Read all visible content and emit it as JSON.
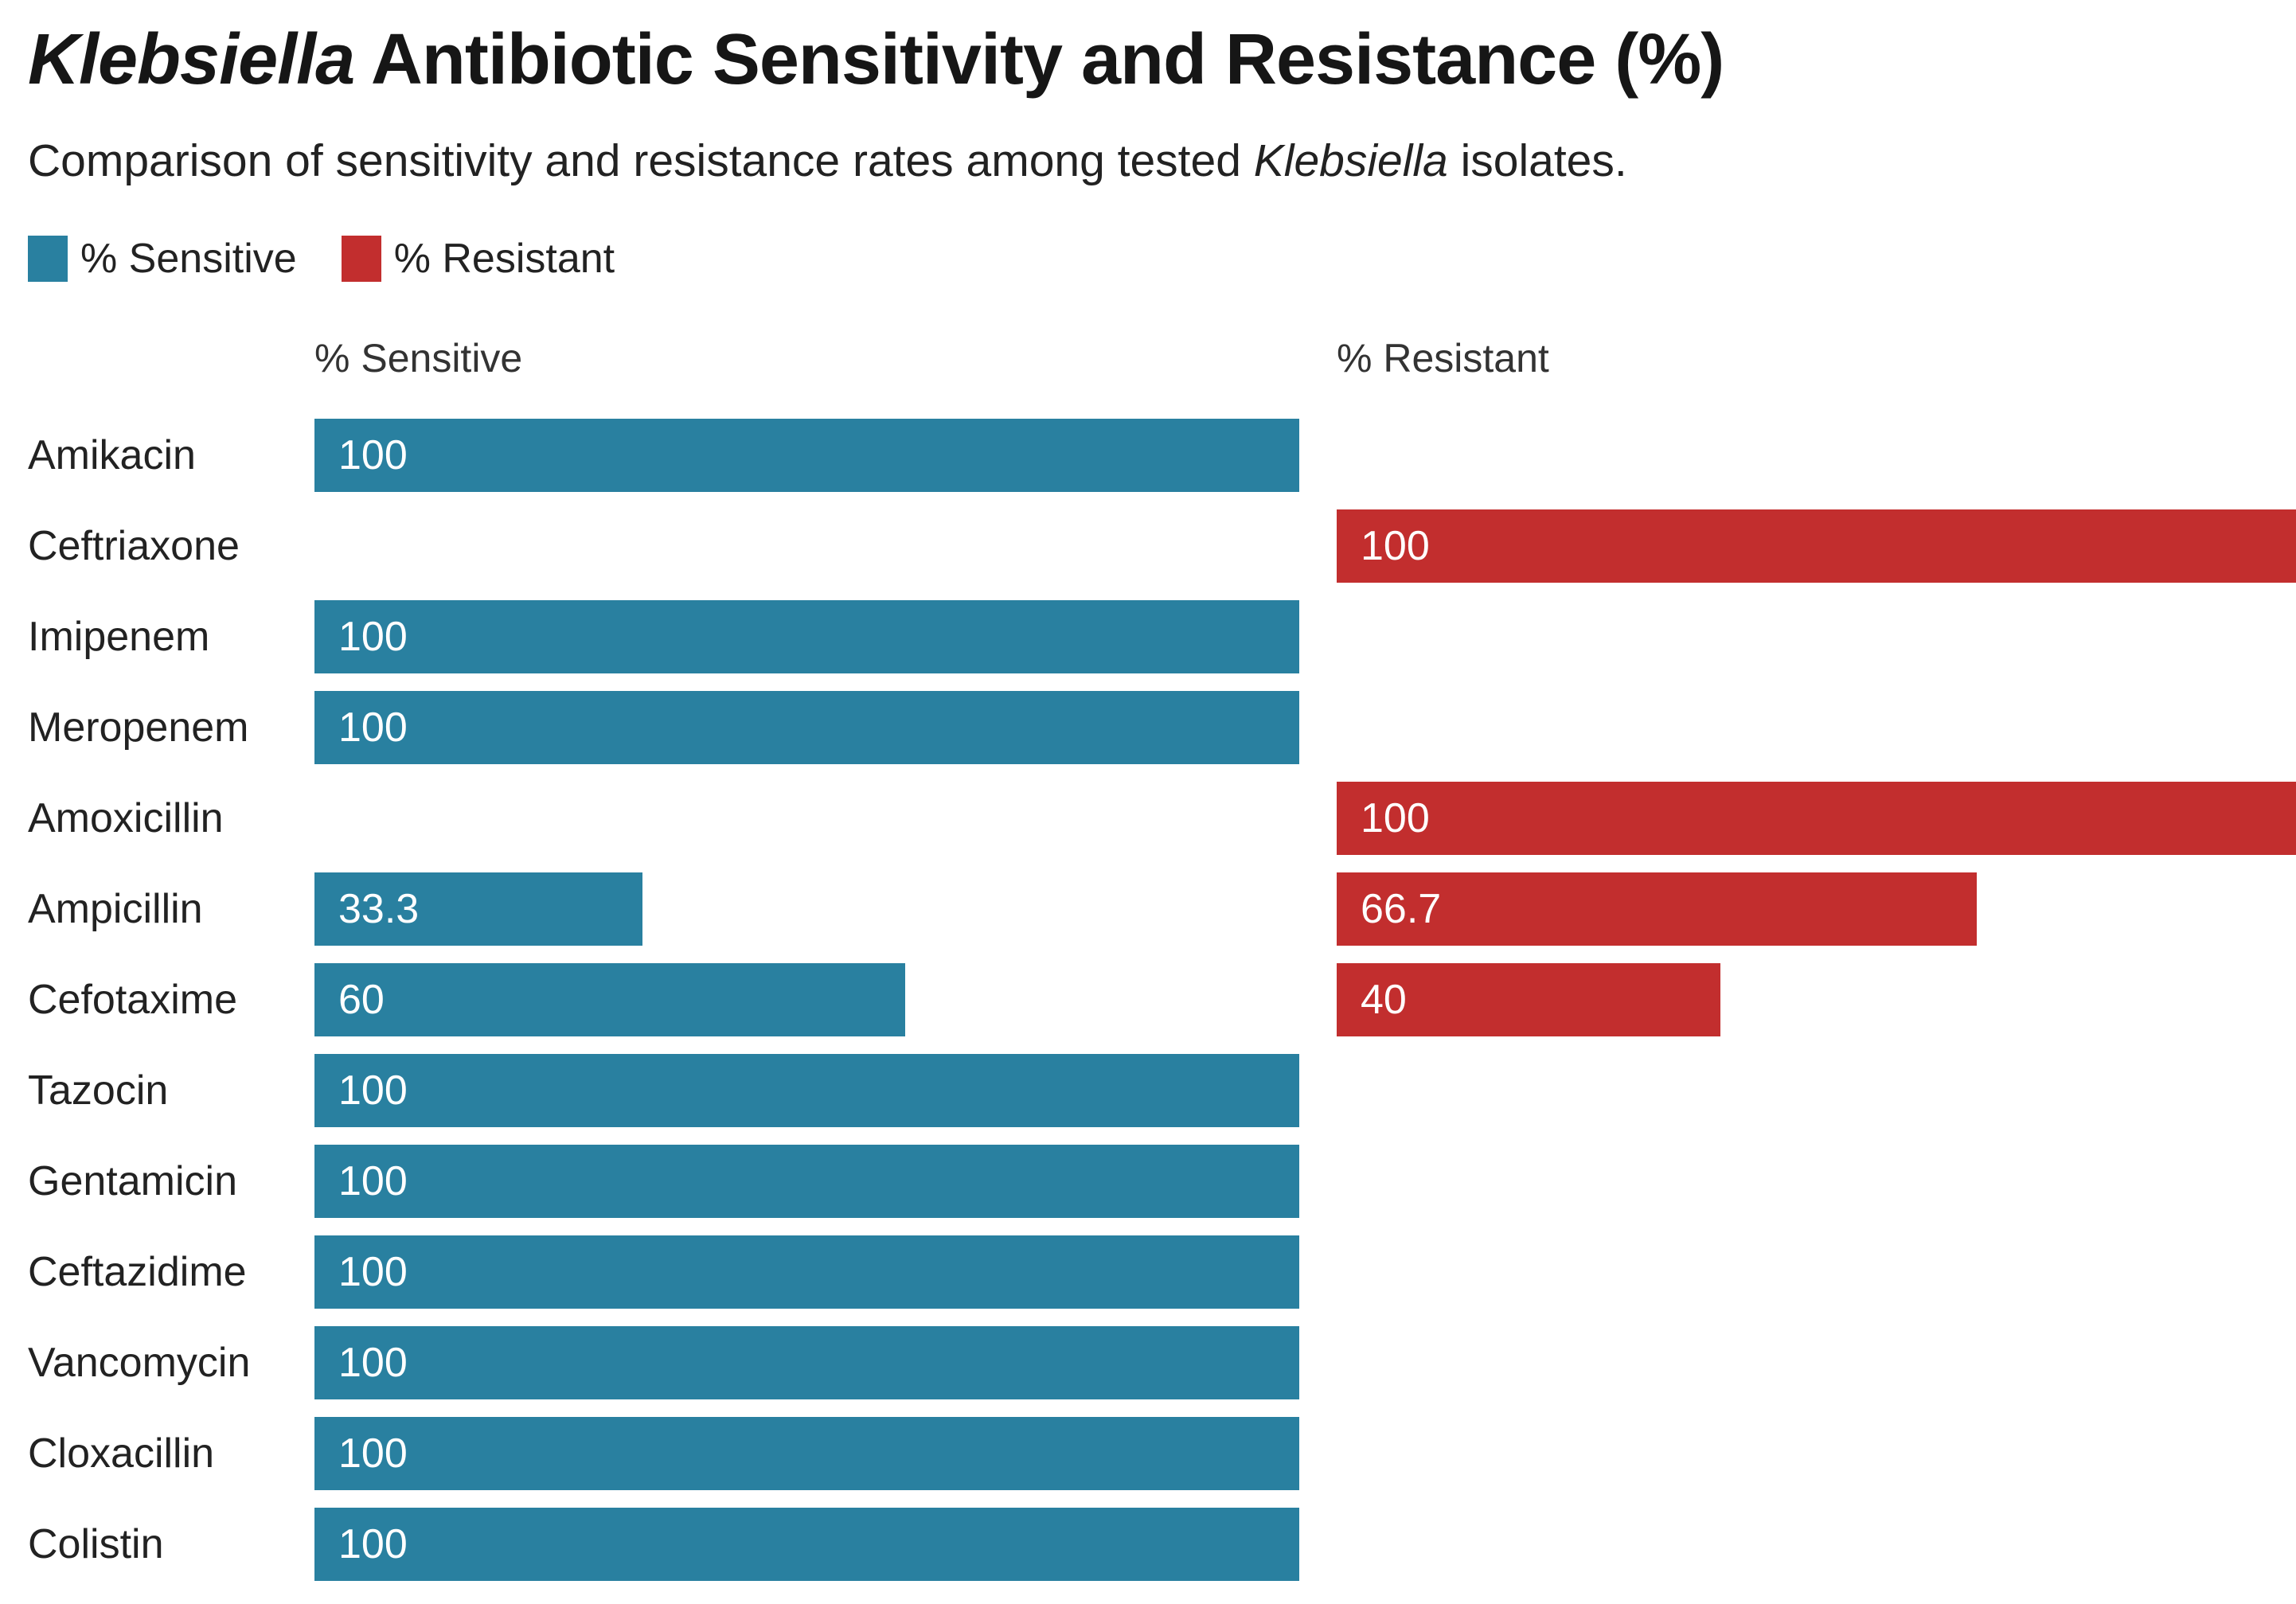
{
  "header": {
    "title_italic": "Klebsiella",
    "title_rest": " Antibiotic Sensitivity and Resistance (%)",
    "subtitle_before": "Comparison of sensitivity and resistance rates among tested ",
    "subtitle_italic": "Klebsiella",
    "subtitle_after": " isolates."
  },
  "legend": [
    {
      "label": "% Sensitive",
      "color": "#2980A0"
    },
    {
      "label": "% Resistant",
      "color": "#C22E2E"
    }
  ],
  "columns": {
    "sensitive_header": "% Sensitive",
    "resistant_header": "% Resistant"
  },
  "colors": {
    "sensitive": "#2980A0",
    "resistant": "#C22E2E",
    "bar_value_text": "#ffffff",
    "title_text": "#161616",
    "body_text": "#222222"
  },
  "chart_data": {
    "type": "bar",
    "orientation": "horizontal",
    "title": "Klebsiella Antibiotic Sensitivity and Resistance (%)",
    "subtitle": "Comparison of sensitivity and resistance rates among tested Klebsiella isolates.",
    "legend_position": "top-left",
    "grid": false,
    "xlim": [
      0,
      100
    ],
    "value_labels": "inside-start",
    "categories": [
      "Amikacin",
      "Ceftriaxone",
      "Imipenem",
      "Meropenem",
      "Amoxicillin",
      "Ampicillin",
      "Cefotaxime",
      "Tazocin",
      "Gentamicin",
      "Ceftazidime",
      "Vancomycin",
      "Cloxacillin",
      "Colistin"
    ],
    "series": [
      {
        "name": "% Sensitive",
        "color": "#2980A0",
        "values": [
          100,
          null,
          100,
          100,
          null,
          33.3,
          60,
          100,
          100,
          100,
          100,
          100,
          100
        ]
      },
      {
        "name": "% Resistant",
        "color": "#C22E2E",
        "values": [
          null,
          100,
          null,
          null,
          100,
          66.7,
          40,
          null,
          null,
          null,
          null,
          null,
          null
        ]
      }
    ]
  }
}
